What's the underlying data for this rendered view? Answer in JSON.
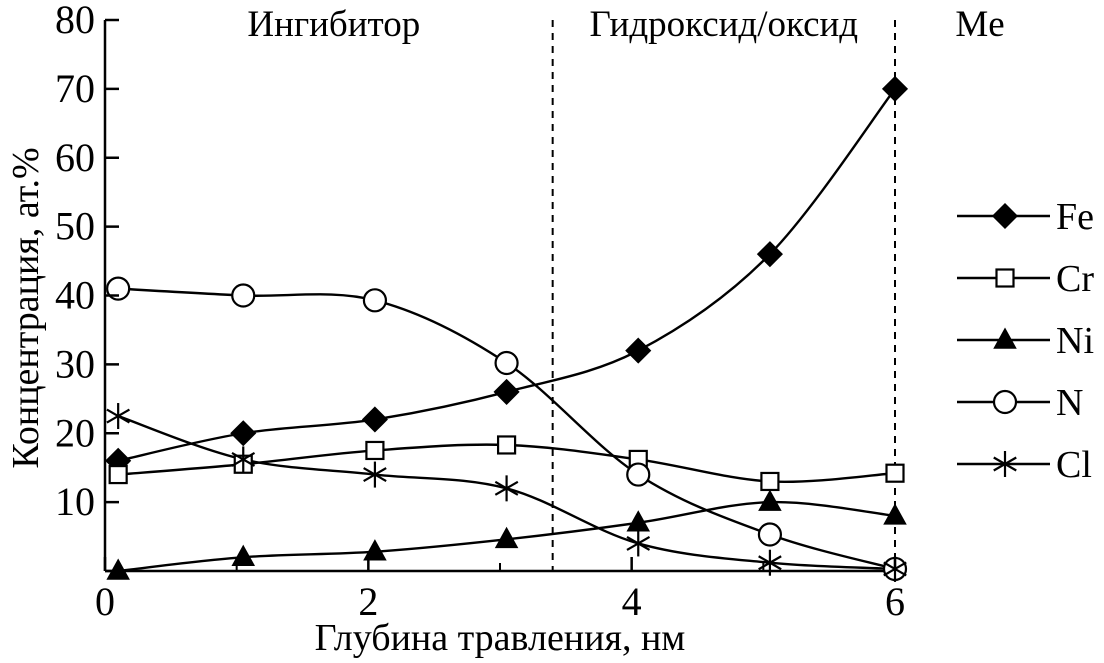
{
  "chart_data": {
    "type": "line",
    "xlabel": "Глубина травления, нм",
    "ylabel": "Концентрация, ат.%",
    "xlim": [
      0,
      6
    ],
    "ylim": [
      0,
      80
    ],
    "x_ticks": [
      0,
      2,
      4,
      6
    ],
    "y_ticks": [
      0,
      10,
      20,
      30,
      40,
      50,
      60,
      70,
      80
    ],
    "x_tick_labels": [
      "0",
      "2",
      "4",
      "6"
    ],
    "y_tick_labels": [
      "",
      "10",
      "20",
      "30",
      "40",
      "50",
      "60",
      "70",
      "80"
    ],
    "grid": false,
    "legend_position": "right",
    "regions": [
      {
        "label": "Ингибитор",
        "x_start": 0,
        "x_end": 3.4
      },
      {
        "label": "Гидроксид/оксид",
        "x_start": 3.4,
        "x_end": 6
      },
      {
        "label": "Me",
        "x_start": 6,
        "x_end": null
      }
    ],
    "region_boundaries": [
      3.4,
      6
    ],
    "series": [
      {
        "name": "Fe",
        "marker": "filled-diamond",
        "x": [
          0.1,
          1.05,
          2.05,
          3.05,
          4.05,
          5.05,
          6.0
        ],
        "y": [
          16,
          20,
          22,
          26,
          32,
          46,
          70
        ]
      },
      {
        "name": "Cr",
        "marker": "open-square",
        "x": [
          0.1,
          1.05,
          2.05,
          3.05,
          4.05,
          5.05,
          6.0
        ],
        "y": [
          14,
          15.5,
          17.5,
          18.3,
          16.2,
          13,
          14.2
        ]
      },
      {
        "name": "Ni",
        "marker": "filled-triangle",
        "x": [
          0.1,
          1.05,
          2.05,
          3.05,
          4.05,
          5.05,
          6.0
        ],
        "y": [
          0,
          2,
          2.8,
          4.6,
          7,
          10,
          8
        ]
      },
      {
        "name": "N",
        "marker": "open-circle",
        "x": [
          0.1,
          1.05,
          2.05,
          3.05,
          4.05,
          5.05,
          6.0
        ],
        "y": [
          41,
          40,
          39.3,
          30.2,
          14,
          5.3,
          0.3
        ]
      },
      {
        "name": "Cl",
        "marker": "asterisk",
        "x": [
          0.1,
          1.05,
          2.05,
          3.05,
          4.05,
          5.05,
          6.0
        ],
        "y": [
          22.5,
          16.2,
          14,
          12,
          4,
          1.2,
          0.3
        ]
      }
    ]
  }
}
